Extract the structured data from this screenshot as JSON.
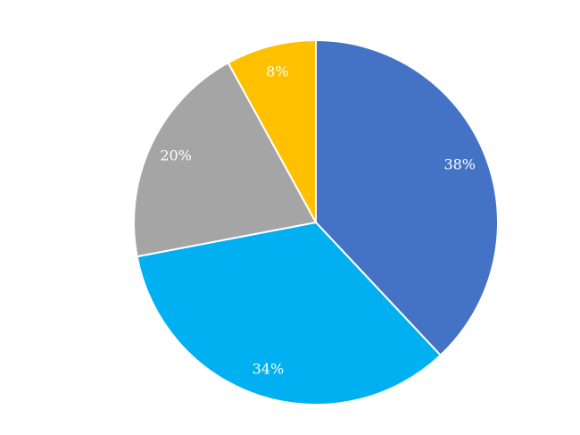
{
  "chart_data": {
    "type": "pie",
    "values": [
      38,
      34,
      20,
      8
    ],
    "value_labels": [
      "38%",
      "34%",
      "20%",
      "8%"
    ],
    "colors": [
      "#4472c4",
      "#00b0f0",
      "#a5a5a5",
      "#ffc000"
    ]
  }
}
